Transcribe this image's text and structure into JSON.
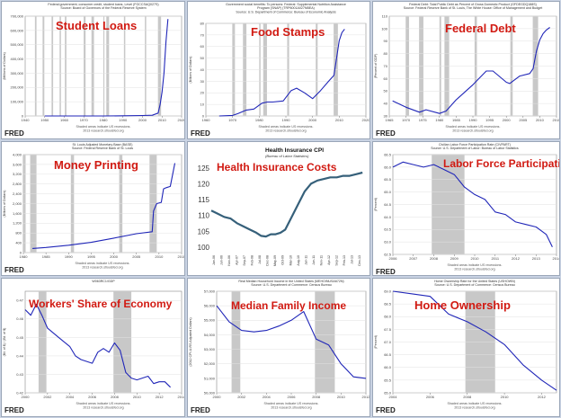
{
  "chart_data": [
    {
      "type": "line",
      "overlay_title": "Student Loans",
      "header": [
        "Federal government; consumer credit, student loans, Level (FGCCSAQ027S)",
        "Source: Board of Governors of the Federal Reserve System"
      ],
      "ylabel": "(Millions of Dollars)",
      "x_ticks": [
        1940,
        1950,
        1960,
        1970,
        1980,
        1990,
        2000,
        2010,
        2020
      ],
      "y_ticks": [
        0,
        100000,
        200000,
        300000,
        400000,
        500000,
        600000,
        700000
      ],
      "y_tick_labels": [
        "0",
        "100,000",
        "200,000",
        "300,000",
        "400,000",
        "500,000",
        "600,000",
        "700,000"
      ],
      "xlim": [
        1940,
        2020
      ],
      "ylim": [
        0,
        700000
      ],
      "x": [
        1950,
        1960,
        1970,
        1980,
        1990,
        2000,
        2005,
        2008,
        2009,
        2010,
        2011,
        2012,
        2013
      ],
      "y": [
        0,
        0,
        0,
        0,
        1000,
        3000,
        5000,
        20000,
        80000,
        170000,
        300000,
        520000,
        680000
      ],
      "recessions": [
        [
          1945,
          1945.8
        ],
        [
          1948.9,
          1949.8
        ],
        [
          1953.5,
          1954.3
        ],
        [
          1957.6,
          1958.3
        ],
        [
          1960.3,
          1961.1
        ],
        [
          1969.9,
          1970.9
        ],
        [
          1973.9,
          1975.2
        ],
        [
          1980,
          1980.5
        ],
        [
          1981.5,
          1982.9
        ],
        [
          1990.5,
          1991.2
        ],
        [
          2001.2,
          2001.9
        ],
        [
          2007.9,
          2009.5
        ]
      ],
      "footer": [
        "Shaded areas indicate US recessions.",
        "2013 research.stlouisfed.org"
      ]
    },
    {
      "type": "line",
      "overlay_title": "Food Stamps",
      "header": [
        "Government social benefits: To persons: Federal: Supplemental Nutrition Assistance",
        "Program (SNAP) (TRP6001A027NBEA)",
        "Source: U.S. Department of Commerce: Bureau of Economic Analysis"
      ],
      "ylabel": "(Billions of Dollars)",
      "x_ticks": [
        1960,
        1970,
        1980,
        1990,
        2000,
        2010,
        2020
      ],
      "y_ticks": [
        0,
        10,
        20,
        30,
        40,
        50,
        60,
        70,
        80
      ],
      "xlim": [
        1960,
        2020
      ],
      "ylim": [
        0,
        80
      ],
      "x": [
        1965,
        1970,
        1972,
        1975,
        1978,
        1981,
        1983,
        1985,
        1989,
        1992,
        1994,
        1997,
        2000,
        2003,
        2006,
        2008,
        2009,
        2010,
        2011,
        2012
      ],
      "y": [
        0,
        0.5,
        2,
        5,
        6,
        11,
        12,
        12,
        13,
        22,
        24,
        20,
        15,
        22,
        30,
        35,
        50,
        65,
        72,
        75
      ],
      "recessions": [
        [
          1969.9,
          1970.9
        ],
        [
          1973.9,
          1975.2
        ],
        [
          1980,
          1980.5
        ],
        [
          1981.5,
          1982.9
        ],
        [
          1990.5,
          1991.2
        ],
        [
          2001.2,
          2001.9
        ],
        [
          2007.9,
          2009.5
        ]
      ],
      "footer": [
        "Shaded areas indicate US recessions.",
        "2013 research.stlouisfed.org"
      ]
    },
    {
      "type": "line",
      "overlay_title": "Federal Debt",
      "header": [
        "Federal Debt: Total Public Debt as Percent of Gross Domestic Product (GFDEGDQ188S)",
        "Source: Federal Reserve Bank of St. Louis, The White House: Office of Management and Budget"
      ],
      "ylabel": "(Percent of GDP)",
      "x_ticks": [
        1965,
        1970,
        1975,
        1980,
        1985,
        1990,
        1995,
        2000,
        2005,
        2010,
        2015
      ],
      "y_ticks": [
        30,
        40,
        50,
        60,
        70,
        80,
        90,
        100,
        110
      ],
      "xlim": [
        1965,
        2015
      ],
      "ylim": [
        30,
        110
      ],
      "x": [
        1966,
        1970,
        1974,
        1976,
        1980,
        1982,
        1985,
        1990,
        1994,
        1996,
        2000,
        2001,
        2004,
        2007,
        2008,
        2009,
        2010,
        2011,
        2012,
        2013
      ],
      "y": [
        42,
        37,
        33,
        35,
        32,
        34,
        43,
        55,
        66,
        66,
        57,
        56,
        62,
        64,
        68,
        82,
        91,
        96,
        99,
        101
      ],
      "recessions": [
        [
          1969.9,
          1970.9
        ],
        [
          1973.9,
          1975.2
        ],
        [
          1980,
          1980.5
        ],
        [
          1981.5,
          1982.9
        ],
        [
          1990.5,
          1991.2
        ],
        [
          2001.2,
          2001.9
        ],
        [
          2007.9,
          2009.5
        ]
      ],
      "footer": [
        "Shaded areas indicate US recessions.",
        "2013 research.stlouisfed.org"
      ]
    },
    {
      "type": "line",
      "overlay_title": "Money Printing",
      "header": [
        "St. Louis Adjusted Monetary Base (BASE)",
        "Source: Federal Reserve Bank of St. Louis"
      ],
      "ylabel": "(Billions of Dollars)",
      "x_ticks": [
        1980,
        1985,
        1990,
        1995,
        2000,
        2005,
        2010,
        2015
      ],
      "y_ticks": [
        0,
        400,
        800,
        1200,
        1600,
        2000,
        2400,
        2800,
        3200,
        3600,
        4000
      ],
      "y_tick_labels": [
        "0",
        "400",
        "800",
        "1,200",
        "1,600",
        "2,000",
        "2,400",
        "2,800",
        "3,200",
        "3,600",
        "4,000"
      ],
      "xlim": [
        1980,
        2015
      ],
      "ylim": [
        0,
        4000
      ],
      "x": [
        1982,
        1985,
        1990,
        1995,
        2000,
        2005,
        2008.5,
        2008.8,
        2009.5,
        2010.5,
        2011,
        2011.6,
        2012.5,
        2013.5
      ],
      "y": [
        170,
        210,
        300,
        420,
        590,
        770,
        850,
        1700,
        2000,
        2050,
        2600,
        2650,
        2700,
        3650
      ],
      "recessions": [
        [
          1980,
          1980.5
        ],
        [
          1981.5,
          1982.9
        ],
        [
          1990.5,
          1991.2
        ],
        [
          2001.2,
          2001.9
        ],
        [
          2007.9,
          2009.5
        ]
      ],
      "footer": [
        "Shaded areas indicate US recessions.",
        "2013 research.stlouisfed.org"
      ]
    },
    {
      "type": "line",
      "overlay_title": "Health Insurance Costs",
      "title": "Health Insurance CPI",
      "subtitle": "(Bureau of Labor Statistics)",
      "x_tick_labels": [
        "Jan-06",
        "Jun-06",
        "Nov-06",
        "Apr-07",
        "Sep-07",
        "Feb-08",
        "Jul-08",
        "Dec-08",
        "May-09",
        "Oct-09",
        "Mar-10",
        "Aug-10",
        "Jan-11",
        "Jun-11",
        "Nov-11",
        "Apr-12",
        "Sep-12",
        "Feb-13",
        "Jul-13",
        "Dec-13"
      ],
      "y_ticks": [
        100,
        105,
        110,
        115,
        120,
        125
      ],
      "xlim": [
        0,
        95
      ],
      "ylim": [
        99,
        126
      ],
      "x": [
        0,
        4,
        8,
        12,
        16,
        20,
        24,
        28,
        31,
        34,
        37,
        40,
        43,
        46,
        50,
        54,
        58,
        62,
        66,
        70,
        74,
        78,
        82,
        86,
        90,
        94
      ],
      "y": [
        112,
        111,
        110,
        109.5,
        108,
        107,
        106,
        105,
        104,
        103.8,
        104.5,
        104.5,
        105,
        106,
        110,
        114,
        118,
        120.5,
        121.5,
        122,
        122.5,
        122.5,
        123,
        123,
        123.5,
        124
      ],
      "recessions": []
    },
    {
      "type": "line",
      "overlay_title": "Labor Force Participation",
      "header": [
        "Civilian Labor Force Participation Rate (CIVPART)",
        "Source: U.S. Department of Labor: Bureau of Labor Statistics"
      ],
      "ylabel": "(Percent)",
      "x_ticks": [
        2006,
        2007,
        2008,
        2009,
        2010,
        2011,
        2012,
        2013,
        2014
      ],
      "y_ticks": [
        62.5,
        63.0,
        63.5,
        64.0,
        64.5,
        65.0,
        65.5,
        66.0,
        66.5
      ],
      "y_tick_labels": [
        "62.5",
        "63.0",
        "63.5",
        "64.0",
        "64.5",
        "65.0",
        "65.5",
        "66.0",
        "66.5"
      ],
      "xlim": [
        2006,
        2014
      ],
      "ylim": [
        62.5,
        66.5
      ],
      "x": [
        2006,
        2006.5,
        2007,
        2007.5,
        2008,
        2008.5,
        2009,
        2009.5,
        2010,
        2010.5,
        2011,
        2011.5,
        2012,
        2012.5,
        2013,
        2013.5,
        2013.8
      ],
      "y": [
        66.0,
        66.2,
        66.1,
        66.0,
        66.1,
        65.9,
        65.7,
        65.2,
        64.9,
        64.7,
        64.2,
        64.1,
        63.8,
        63.7,
        63.6,
        63.3,
        62.8
      ],
      "recessions": [
        [
          2007.9,
          2009.5
        ]
      ],
      "footer": [
        "Shaded areas indicate US recessions.",
        "2013 research.stlouisfed.org"
      ]
    },
    {
      "type": "line",
      "overlay_title": "Workers' Share of Economy",
      "header": [
        "W063RC1/GDP"
      ],
      "ylabel": "(Bil. of $) / (Bil. of $)",
      "x_ticks": [
        2000,
        2002,
        2004,
        2006,
        2008,
        2010,
        2012,
        2014
      ],
      "y_ticks": [
        0.42,
        0.43,
        0.44,
        0.45,
        0.46,
        0.47
      ],
      "y_tick_labels": [
        "0.42",
        "0.43",
        "0.44",
        "0.45",
        "0.46",
        "0.47"
      ],
      "xlim": [
        2000,
        2014
      ],
      "ylim": [
        0.42,
        0.475
      ],
      "x": [
        2000,
        2000.5,
        2001,
        2001.5,
        2002,
        2003,
        2004,
        2004.5,
        2005,
        2006,
        2006.5,
        2007,
        2007.5,
        2008,
        2008.5,
        2009,
        2009.5,
        2010,
        2011,
        2011.5,
        2012,
        2012.5,
        2013
      ],
      "y": [
        0.465,
        0.462,
        0.468,
        0.462,
        0.455,
        0.45,
        0.445,
        0.44,
        0.438,
        0.436,
        0.442,
        0.444,
        0.442,
        0.447,
        0.443,
        0.431,
        0.428,
        0.427,
        0.429,
        0.425,
        0.426,
        0.426,
        0.423
      ],
      "recessions": [
        [
          2001.2,
          2001.9
        ],
        [
          2007.9,
          2009.5
        ]
      ],
      "footer": [
        "Shaded areas indicate US recessions.",
        "2013 research.stlouisfed.org"
      ]
    },
    {
      "type": "line",
      "overlay_title": "Median Family Income",
      "header": [
        "Real Median Household Income in the United States (MEHOINUSA672N)",
        "Source: U.S. Department of Commerce: Census Bureau"
      ],
      "ylabel": "(2012 CPI-U-RS Adjusted Dollars)",
      "x_ticks": [
        2000,
        2002,
        2004,
        2006,
        2008,
        2010,
        2012
      ],
      "y_ticks": [
        50000,
        51000,
        52000,
        53000,
        54000,
        55000,
        56000,
        57000
      ],
      "y_tick_labels": [
        "50,000",
        "51,000",
        "52,000",
        "53,000",
        "54,000",
        "55,000",
        "56,000",
        "57,000"
      ],
      "xlim": [
        2000,
        2012
      ],
      "ylim": [
        50000,
        57000
      ],
      "x": [
        2000,
        2001,
        2002,
        2003,
        2004,
        2005,
        2006,
        2007,
        2008,
        2009,
        2010,
        2011,
        2012
      ],
      "y": [
        56000,
        54900,
        54300,
        54200,
        54300,
        54600,
        55000,
        55600,
        53700,
        53300,
        52000,
        51100,
        51000
      ],
      "recessions": [
        [
          2001.2,
          2001.9
        ],
        [
          2007.9,
          2009.5
        ]
      ],
      "footer": [
        "Shaded areas indicate US recessions.",
        "2013 research.stlouisfed.org"
      ]
    },
    {
      "type": "line",
      "overlay_title": "Home Ownership",
      "header": [
        "Home Ownership Rate for the United States (USHOWN)",
        "Source: U.S. Department of Commerce: Census Bureau"
      ],
      "ylabel": "(Percent)",
      "x_ticks": [
        2004,
        2006,
        2008,
        2010,
        2012
      ],
      "y_ticks": [
        65.0,
        65.5,
        66.0,
        66.5,
        67.0,
        67.5,
        68.0,
        68.5,
        69.0
      ],
      "y_tick_labels": [
        "65.0",
        "65.5",
        "66.0",
        "66.5",
        "67.0",
        "67.5",
        "68.0",
        "68.5",
        "69.0"
      ],
      "xlim": [
        2004,
        2012.8
      ],
      "ylim": [
        65.0,
        69.0
      ],
      "x": [
        2004,
        2005,
        2006,
        2007,
        2008,
        2009,
        2010,
        2011,
        2012,
        2012.8
      ],
      "y": [
        69.0,
        68.9,
        68.8,
        68.1,
        67.8,
        67.4,
        66.9,
        66.1,
        65.5,
        65.1
      ],
      "recessions": [
        [
          2007.9,
          2009.5
        ]
      ],
      "footer": [
        "Shaded areas indicate US recessions.",
        "2013 research.stlouisfed.org"
      ]
    }
  ],
  "fred_logo": "FRED",
  "colors": {
    "line": "#2026b8",
    "hic_line": "#36607a",
    "recession": "#c8c8c8",
    "overlay_title": "#d11a12"
  }
}
